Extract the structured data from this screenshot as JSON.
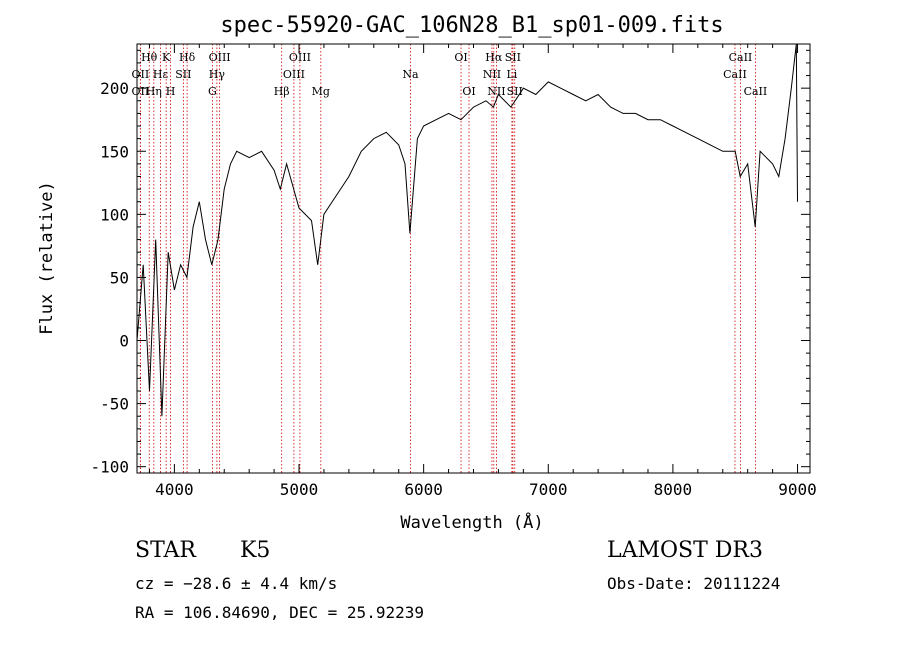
{
  "chart_data": {
    "type": "line",
    "title": "spec-55920-GAC_106N28_B1_sp01-009.fits",
    "xlabel": "Wavelength (Å)",
    "ylabel": "Flux (relative)",
    "xlim": [
      3700,
      9100
    ],
    "ylim": [
      -105,
      235
    ],
    "x_ticks": [
      4000,
      5000,
      6000,
      7000,
      8000,
      9000
    ],
    "y_ticks": [
      -100,
      -50,
      0,
      50,
      100,
      150,
      200
    ],
    "grid": false,
    "series": [
      {
        "name": "spectrum",
        "x": [
          3700,
          3750,
          3800,
          3850,
          3900,
          3950,
          4000,
          4050,
          4100,
          4150,
          4200,
          4250,
          4300,
          4350,
          4400,
          4450,
          4500,
          4600,
          4700,
          4800,
          4850,
          4900,
          5000,
          5100,
          5150,
          5200,
          5300,
          5400,
          5500,
          5600,
          5700,
          5800,
          5850,
          5890,
          5950,
          6000,
          6100,
          6200,
          6300,
          6400,
          6500,
          6560,
          6600,
          6700,
          6800,
          6900,
          7000,
          7100,
          7200,
          7300,
          7400,
          7500,
          7600,
          7700,
          7800,
          7900,
          8000,
          8100,
          8200,
          8300,
          8400,
          8500,
          8540,
          8600,
          8660,
          8700,
          8800,
          8850,
          8900,
          8950,
          8990,
          9000
        ],
        "y": [
          0,
          60,
          -40,
          80,
          -60,
          70,
          40,
          60,
          50,
          90,
          110,
          80,
          60,
          80,
          120,
          140,
          150,
          145,
          150,
          135,
          120,
          140,
          105,
          95,
          60,
          100,
          115,
          130,
          150,
          160,
          165,
          155,
          140,
          85,
          160,
          170,
          175,
          180,
          175,
          185,
          190,
          185,
          195,
          185,
          200,
          195,
          205,
          200,
          195,
          190,
          195,
          185,
          180,
          180,
          175,
          175,
          170,
          165,
          160,
          155,
          150,
          150,
          130,
          140,
          90,
          150,
          140,
          130,
          160,
          200,
          240,
          110
        ]
      }
    ],
    "line_markers": [
      {
        "label": "Hθ",
        "x": 3798,
        "row": 0
      },
      {
        "label": "OII",
        "x": 3727,
        "row": 1
      },
      {
        "label": "OII",
        "x": 3727,
        "row": 2
      },
      {
        "label": "K",
        "x": 3934,
        "row": 0
      },
      {
        "label": "Hε",
        "x": 3889,
        "row": 1
      },
      {
        "label": "Hη",
        "x": 3835,
        "row": 2
      },
      {
        "label": "Hδ",
        "x": 4102,
        "row": 0
      },
      {
        "label": "SII",
        "x": 4072,
        "row": 1
      },
      {
        "label": "H",
        "x": 3969,
        "row": 2
      },
      {
        "label": "OIII",
        "x": 4363,
        "row": 0
      },
      {
        "label": "Hγ",
        "x": 4341,
        "row": 1
      },
      {
        "label": "G",
        "x": 4305,
        "row": 2
      },
      {
        "label": "Hβ",
        "x": 4861,
        "row": 2
      },
      {
        "label": "OIII",
        "x": 5007,
        "row": 0
      },
      {
        "label": "OIII",
        "x": 4959,
        "row": 1
      },
      {
        "label": "Mg",
        "x": 5175,
        "row": 2
      },
      {
        "label": "Na",
        "x": 5894,
        "row": 1
      },
      {
        "label": "OI",
        "x": 6300,
        "row": 0
      },
      {
        "label": "OI",
        "x": 6364,
        "row": 2
      },
      {
        "label": "Hα",
        "x": 6563,
        "row": 0
      },
      {
        "label": "SII",
        "x": 6716,
        "row": 0
      },
      {
        "label": "NII",
        "x": 6548,
        "row": 1
      },
      {
        "label": "NII",
        "x": 6584,
        "row": 2
      },
      {
        "label": "Li",
        "x": 6708,
        "row": 1
      },
      {
        "label": "SII",
        "x": 6731,
        "row": 2
      },
      {
        "label": "CaII",
        "x": 8542,
        "row": 0
      },
      {
        "label": "CaII",
        "x": 8498,
        "row": 1
      },
      {
        "label": "CaII",
        "x": 8662,
        "row": 2
      }
    ]
  },
  "info": {
    "class_label": "STAR",
    "subclass": "K5",
    "survey": "LAMOST DR3",
    "redshift": "cz = −28.6 ± 4.4 km/s",
    "obs_date": "Obs-Date: 20111224",
    "coords": "RA = 106.84690, DEC =  25.92239"
  },
  "colors": {
    "axis": "#000000",
    "spectrum": "#000000",
    "marker": "#cc0000"
  }
}
